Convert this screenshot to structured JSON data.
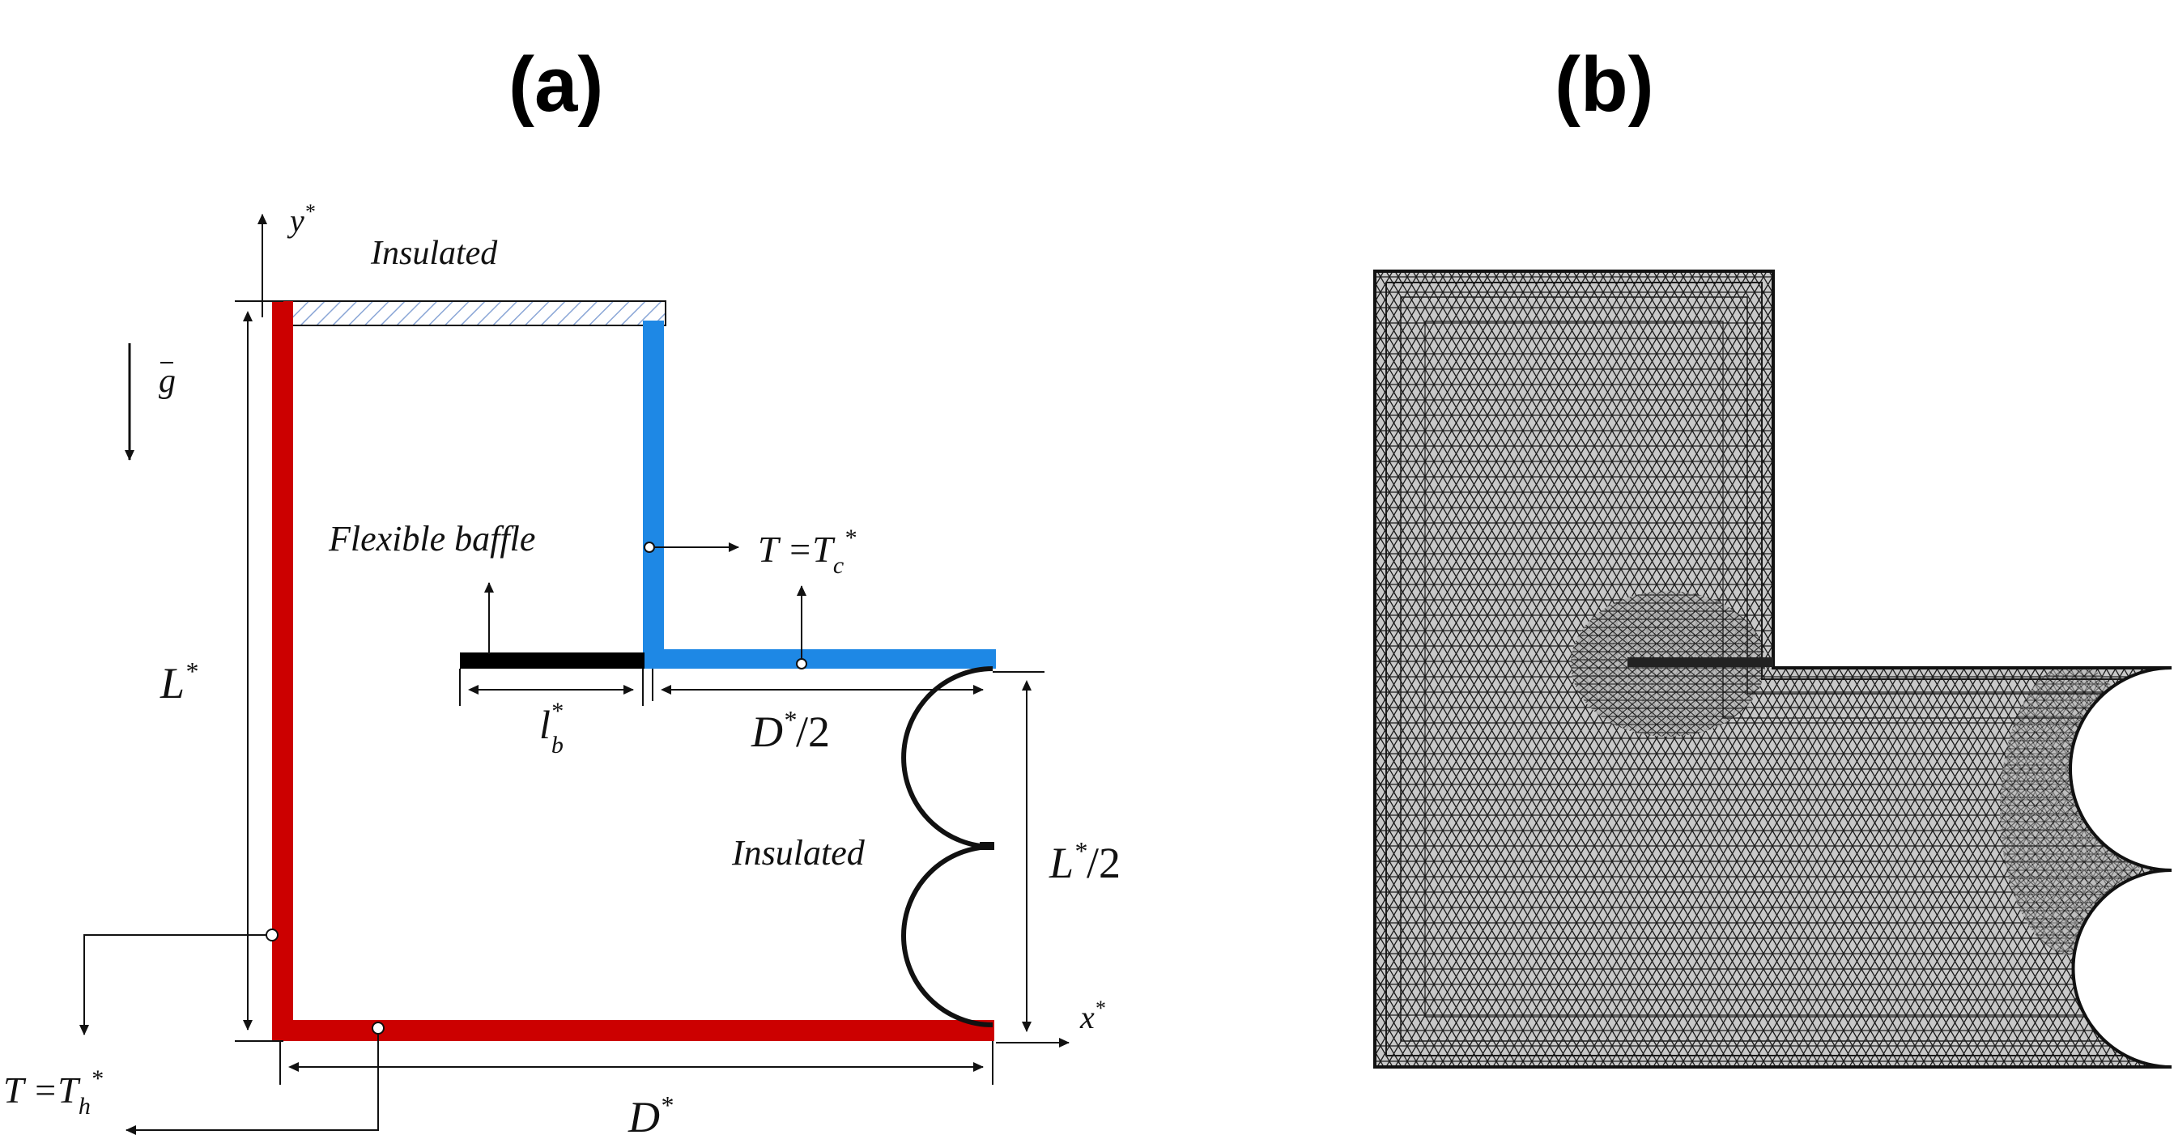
{
  "panels": {
    "a": {
      "label": "(a)"
    },
    "b": {
      "label": "(b)"
    }
  },
  "schematic": {
    "top_wall_label": "Insulated",
    "right_wall_label": "Insulated",
    "baffle_label": "Flexible baffle",
    "cold_bc": "T =T",
    "cold_sub": "c",
    "hot_bc": "T =T",
    "hot_sub": "h",
    "gravity": "g",
    "y_axis": "y",
    "x_axis": "x",
    "height_dim": "L",
    "half_height_dim": "L",
    "width_dim": "D",
    "half_width_dim": "D",
    "baffle_length_dim": "l",
    "baffle_length_sub": "b",
    "star": "*",
    "div_two": "/2"
  },
  "colors": {
    "hot_wall": "#cc0000",
    "cold_wall": "#1e88e5",
    "baffle": "#000000",
    "insulation_hatch": "#8aa6d6",
    "mesh_fill": "#c8c8c8",
    "mesh_line": "#1a1a1a"
  }
}
